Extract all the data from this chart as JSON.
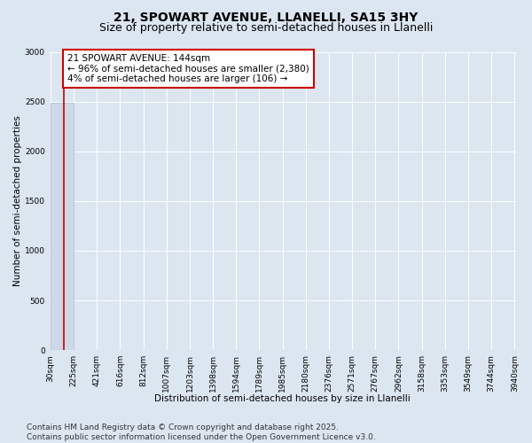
{
  "title_line1": "21, SPOWART AVENUE, LLANELLI, SA15 3HY",
  "title_line2": "Size of property relative to semi-detached houses in Llanelli",
  "xlabel": "Distribution of semi-detached houses by size in Llanelli",
  "ylabel": "Number of semi-detached properties",
  "annotation_line1": "21 SPOWART AVENUE: 144sqm",
  "annotation_line2": "← 96% of semi-detached houses are smaller (2,380)",
  "annotation_line3": "4% of semi-detached houses are larger (106) →",
  "footer_line1": "Contains HM Land Registry data © Crown copyright and database right 2025.",
  "footer_line2": "Contains public sector information licensed under the Open Government Licence v3.0.",
  "bin_edges": [
    30,
    225,
    421,
    616,
    812,
    1007,
    1203,
    1398,
    1594,
    1789,
    1985,
    2180,
    2376,
    2571,
    2767,
    2962,
    3158,
    3353,
    3549,
    3744,
    3940
  ],
  "bin_labels": [
    "30sqm",
    "225sqm",
    "421sqm",
    "616sqm",
    "812sqm",
    "1007sqm",
    "1203sqm",
    "1398sqm",
    "1594sqm",
    "1789sqm",
    "1985sqm",
    "2180sqm",
    "2376sqm",
    "2571sqm",
    "2767sqm",
    "2962sqm",
    "3158sqm",
    "3353sqm",
    "3549sqm",
    "3744sqm",
    "3940sqm"
  ],
  "counts": [
    2486,
    0,
    0,
    0,
    0,
    0,
    0,
    0,
    0,
    0,
    0,
    0,
    0,
    0,
    0,
    0,
    0,
    0,
    0,
    0
  ],
  "property_size": 144,
  "bar_color": "#cdd8e8",
  "bar_edge_color": "#aabbcc",
  "property_line_color": "#cc0000",
  "annotation_box_edgecolor": "#cc0000",
  "annotation_fill_color": "#ffffff",
  "background_color": "#dce6f1",
  "plot_bg_color": "#dce6f1",
  "ylim": [
    0,
    3000
  ],
  "yticks": [
    0,
    500,
    1000,
    1500,
    2000,
    2500,
    3000
  ],
  "title_fontsize": 10,
  "subtitle_fontsize": 9,
  "axis_label_fontsize": 7.5,
  "tick_fontsize": 6.5,
  "annotation_fontsize": 7.5,
  "footer_fontsize": 6.5
}
